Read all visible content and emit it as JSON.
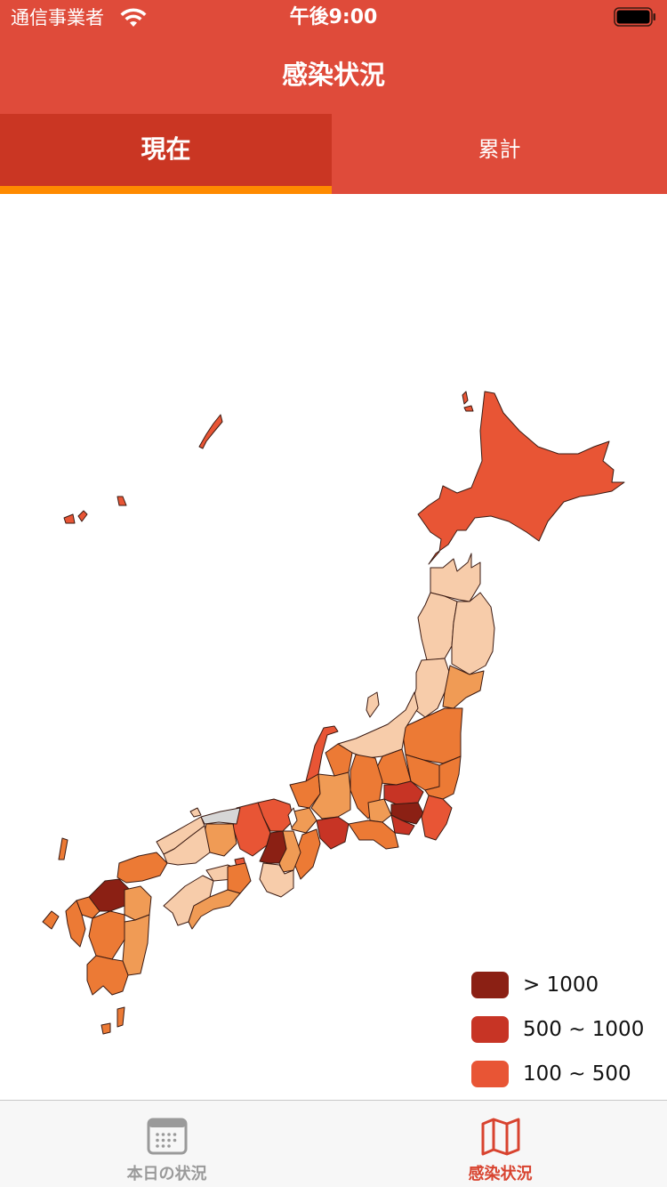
{
  "status_bar": {
    "carrier": "通信事業者",
    "time": "午後9:00"
  },
  "nav": {
    "title": "感染状況"
  },
  "tabs": [
    {
      "label": "現在",
      "selected": true
    },
    {
      "label": "累計",
      "selected": false
    }
  ],
  "colors": {
    "header": "#df4b3a",
    "tab_selected": "#ca3623",
    "tab_indicator": "#ff8a00",
    "level_over_1000": "#8b2014",
    "level_500_1000": "#c73425",
    "level_100_500": "#e85535",
    "level_orange": "#ec7a35",
    "level_light_orange": "#f09b55",
    "level_pale": "#f7ccaa",
    "level_none": "#d6d6d6"
  },
  "legend": [
    {
      "label": "> 1000",
      "color": "#8b2014"
    },
    {
      "label": "500 ~ 1000",
      "color": "#c73425"
    },
    {
      "label": "100 ~ 500",
      "color": "#e85535"
    }
  ],
  "tabbar": [
    {
      "label": "本日の状況",
      "icon": "calendar-icon",
      "selected": false
    },
    {
      "label": "感染状況",
      "icon": "map-icon",
      "selected": true
    }
  ]
}
